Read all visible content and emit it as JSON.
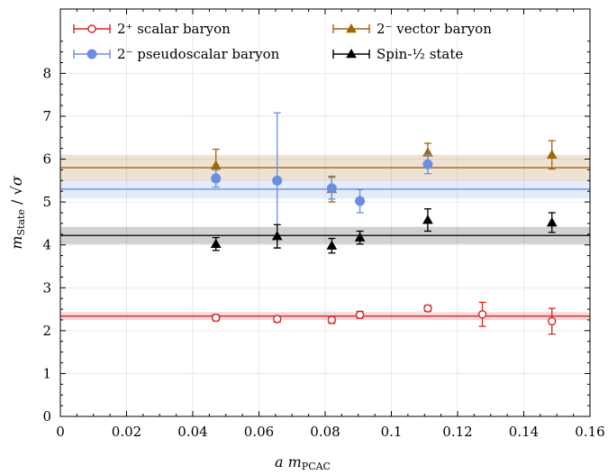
{
  "chart_data": {
    "type": "scatter",
    "xlabel": "a m_PCAC",
    "ylabel": "m_State / √σ",
    "xlim": [
      0,
      0.16
    ],
    "ylim": [
      0,
      9.5
    ],
    "xticks": [
      "0",
      "0.02",
      "0.04",
      "0.06",
      "0.08",
      "0.1",
      "0.12",
      "0.14",
      "0.16"
    ],
    "yticks": [
      "0",
      "1",
      "2",
      "3",
      "4",
      "5",
      "6",
      "7",
      "8"
    ],
    "grid": true,
    "legend_position": "top",
    "series": [
      {
        "name": "2⁺ scalar baryon",
        "color": "#d62728",
        "marker": "open-circle",
        "points": [
          {
            "x": 0.047,
            "y": 2.3,
            "err": 0.07
          },
          {
            "x": 0.0655,
            "y": 2.27,
            "err": 0.07
          },
          {
            "x": 0.082,
            "y": 2.25,
            "err": 0.08
          },
          {
            "x": 0.0905,
            "y": 2.37,
            "err": 0.08
          },
          {
            "x": 0.111,
            "y": 2.52,
            "err": 0.07
          },
          {
            "x": 0.1275,
            "y": 2.38,
            "err": 0.28
          },
          {
            "x": 0.1485,
            "y": 2.22,
            "err": 0.3
          }
        ],
        "fit": {
          "y": 2.34,
          "band": 0.09
        }
      },
      {
        "name": "2⁻ vector baryon",
        "color": "#a0660a",
        "marker": "filled-triangle",
        "points": [
          {
            "x": 0.047,
            "y": 5.85,
            "err": 0.38
          },
          {
            "x": 0.082,
            "y": 5.3,
            "err": 0.3
          },
          {
            "x": 0.111,
            "y": 6.15,
            "err": 0.22
          },
          {
            "x": 0.1485,
            "y": 6.1,
            "err": 0.33
          }
        ],
        "fit": {
          "y": 5.8,
          "band": 0.3
        }
      },
      {
        "name": "2⁻ pseudoscalar baryon",
        "color": "#6a8ee0",
        "marker": "filled-circle",
        "points": [
          {
            "x": 0.047,
            "y": 5.55,
            "err": 0.2
          },
          {
            "x": 0.0655,
            "y": 5.5,
            "err": 1.58
          },
          {
            "x": 0.082,
            "y": 5.32,
            "err": 0.25
          },
          {
            "x": 0.0905,
            "y": 5.02,
            "err": 0.27
          },
          {
            "x": 0.111,
            "y": 5.88,
            "err": 0.22
          }
        ],
        "fit": {
          "y": 5.3,
          "band": 0.22
        }
      },
      {
        "name": "Spin-½ state",
        "color": "#000000",
        "marker": "filled-triangle",
        "points": [
          {
            "x": 0.047,
            "y": 4.02,
            "err": 0.15
          },
          {
            "x": 0.0655,
            "y": 4.2,
            "err": 0.27
          },
          {
            "x": 0.082,
            "y": 3.98,
            "err": 0.17
          },
          {
            "x": 0.0905,
            "y": 4.17,
            "err": 0.15
          },
          {
            "x": 0.111,
            "y": 4.58,
            "err": 0.26
          },
          {
            "x": 0.1485,
            "y": 4.52,
            "err": 0.23
          }
        ],
        "fit": {
          "y": 4.22,
          "band": 0.2
        }
      }
    ]
  }
}
